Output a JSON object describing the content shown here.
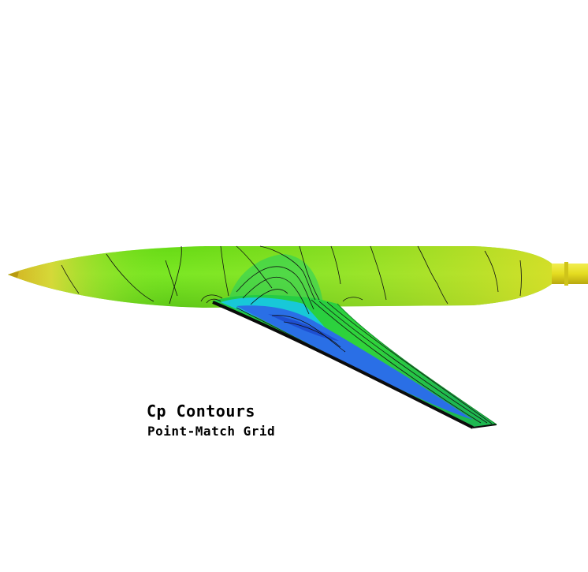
{
  "figure": {
    "title": "Cp Contours",
    "subtitle": "Point-Match Grid"
  },
  "colors": {
    "background": "#ffffff",
    "fuselage_main": "#66e01a",
    "fuselage_nose": "#e0d23a",
    "tail_sting": "#e6e020",
    "wing_upper": "#1fd04a",
    "wing_suction_cyan": "#18c8d8",
    "wing_suction_blue": "#2a6fe6",
    "contour_line": "#111111"
  }
}
